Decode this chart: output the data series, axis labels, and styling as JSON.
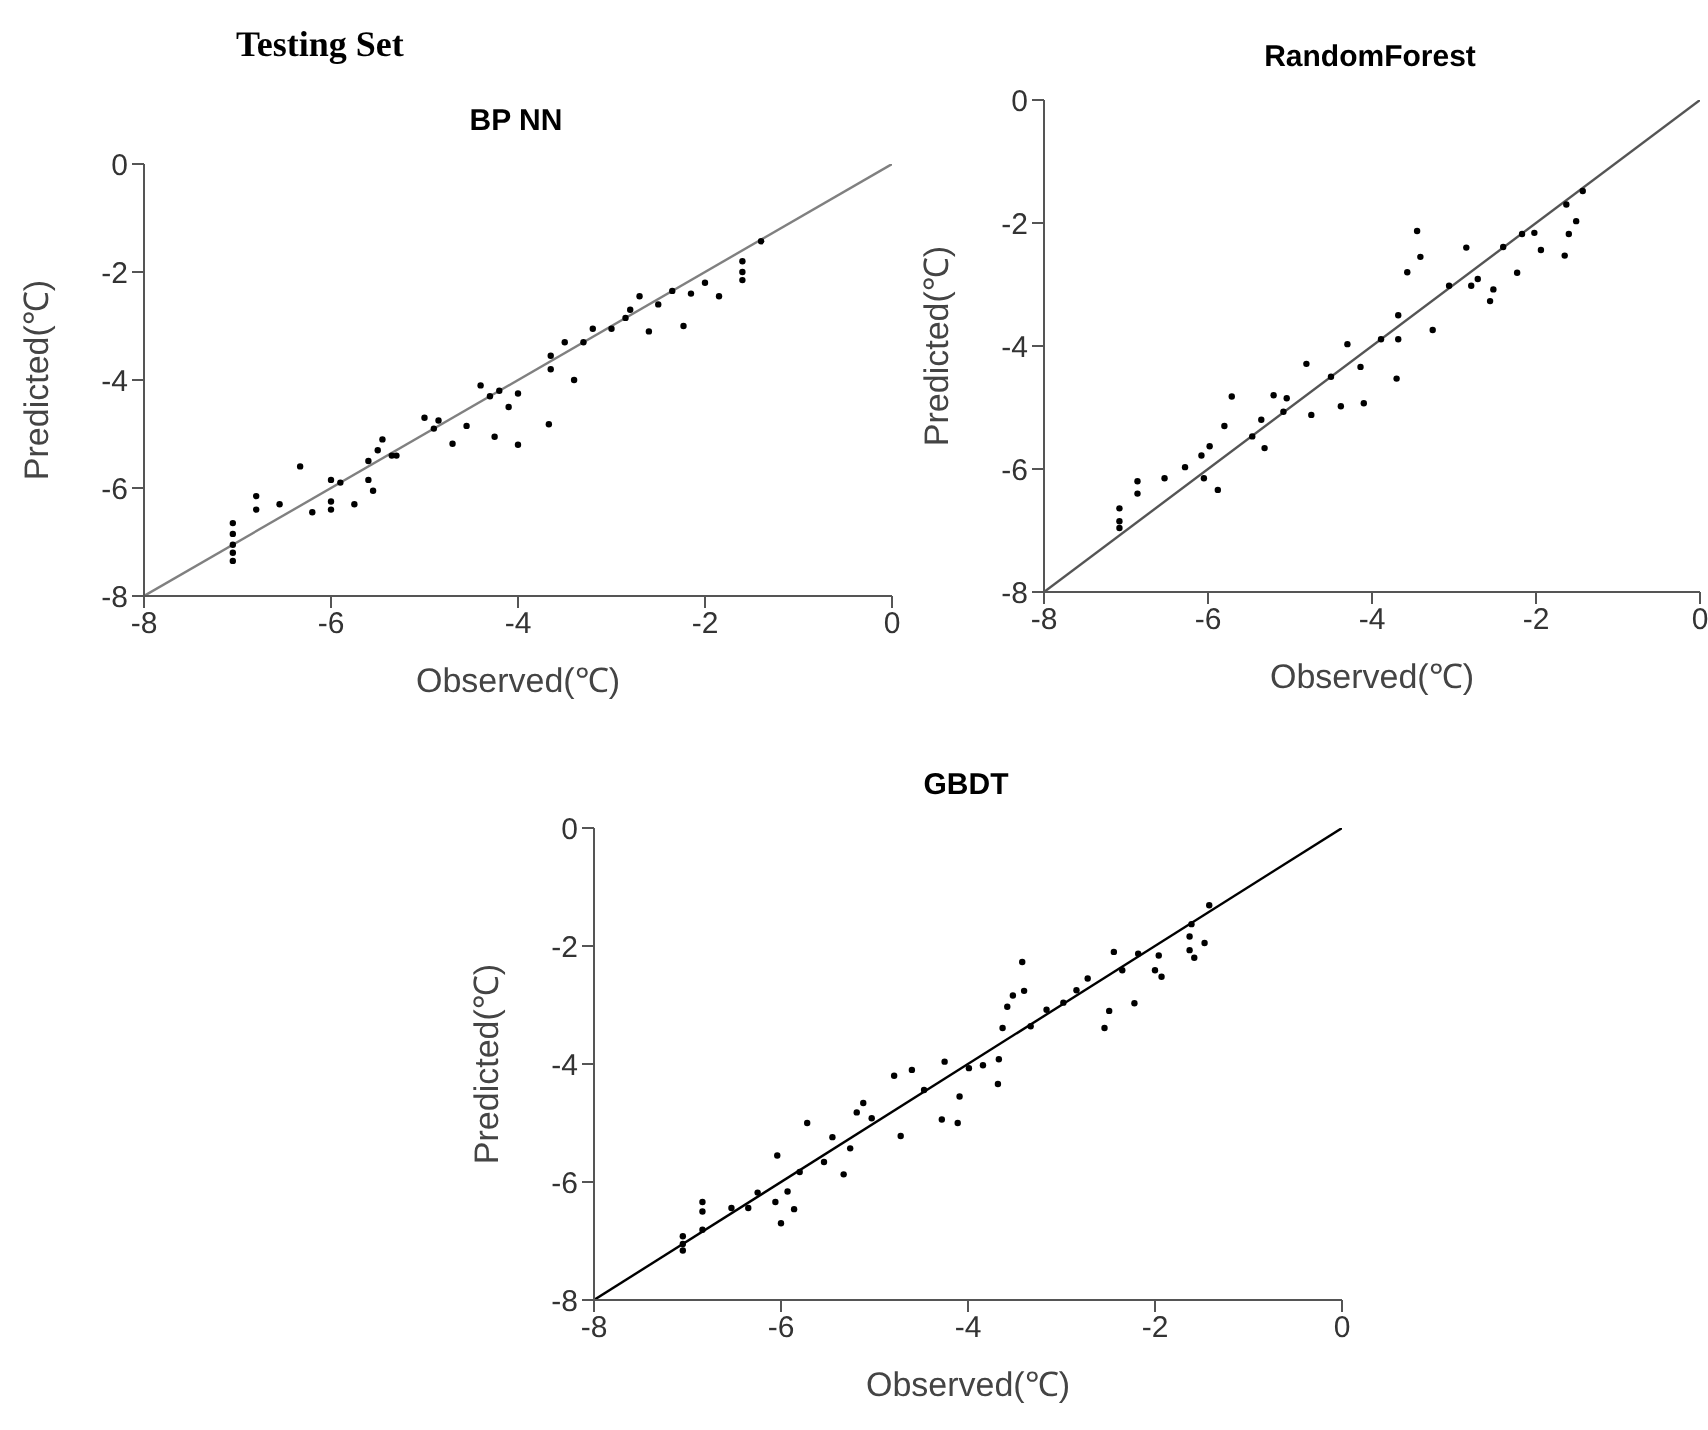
{
  "chart_data": [
    {
      "type": "scatter",
      "title": "BP NN",
      "annotations": [
        "Testing Set"
      ],
      "xlabel": "Observed(℃)",
      "ylabel": "Predicted(℃)",
      "xlim": [
        -8,
        0
      ],
      "ylim": [
        -8,
        0
      ],
      "xticks": [
        -8,
        -6,
        -4,
        -2,
        0
      ],
      "yticks": [
        -8,
        -6,
        -4,
        -2,
        0
      ],
      "series": [
        {
          "marker": "circle",
          "color": "#000000",
          "x": [
            -7.05,
            -7.05,
            -7.05,
            -7.05,
            -7.05,
            -6.8,
            -6.8,
            -6.55,
            -6.33,
            -6.2,
            -6.0,
            -6.0,
            -6.0,
            -5.9,
            -5.75,
            -5.6,
            -5.6,
            -5.55,
            -5.5,
            -5.45,
            -5.35,
            -5.3,
            -5.0,
            -4.9,
            -4.85,
            -4.55,
            -4.7,
            -4.4,
            -4.3,
            -4.2,
            -4.1,
            -4.0,
            -4.25,
            -4.0,
            -3.67,
            -3.65,
            -3.65,
            -3.5,
            -3.4,
            -3.3,
            -3.2,
            -3.0,
            -2.85,
            -2.8,
            -2.7,
            -2.6,
            -2.5,
            -2.35,
            -2.23,
            -2.15,
            -2.0,
            -1.85,
            -1.6,
            -1.6,
            -1.6,
            -1.4
          ],
          "values": [
            -6.65,
            -6.85,
            -7.05,
            -7.2,
            -7.35,
            -6.15,
            -6.4,
            -6.3,
            -5.6,
            -6.45,
            -5.85,
            -6.25,
            -6.4,
            -5.9,
            -6.3,
            -5.5,
            -5.85,
            -6.05,
            -5.3,
            -5.1,
            -5.4,
            -5.4,
            -4.7,
            -4.9,
            -4.75,
            -4.85,
            -5.18,
            -4.1,
            -4.3,
            -4.2,
            -4.5,
            -4.25,
            -5.05,
            -5.2,
            -4.82,
            -3.8,
            -3.55,
            -3.3,
            -4.0,
            -3.3,
            -3.05,
            -3.05,
            -2.85,
            -2.7,
            -2.45,
            -3.1,
            -2.6,
            -2.35,
            -3.0,
            -2.4,
            -2.2,
            -2.45,
            -2.0,
            -2.15,
            -1.8,
            -1.43
          ]
        },
        {
          "type": "line",
          "marker": "none",
          "color": "#808080",
          "x": [
            -8,
            0
          ],
          "values": [
            -8,
            0
          ]
        }
      ]
    },
    {
      "type": "scatter",
      "title": "RandomForest",
      "xlabel": "Observed(℃)",
      "ylabel": "Predicted(℃)",
      "xlim": [
        -8,
        0
      ],
      "ylim": [
        -8,
        0
      ],
      "xticks": [
        -8,
        -6,
        -4,
        -2,
        0
      ],
      "yticks": [
        -8,
        -6,
        -4,
        -2,
        0
      ],
      "series": [
        {
          "marker": "circle",
          "color": "#000000",
          "x": [
            -7.08,
            -7.08,
            -7.08,
            -6.86,
            -6.86,
            -6.53,
            -6.28,
            -6.08,
            -6.05,
            -5.88,
            -5.98,
            -5.8,
            -5.71,
            -5.46,
            -5.35,
            -5.31,
            -5.2,
            -5.04,
            -5.08,
            -4.74,
            -4.8,
            -4.5,
            -4.38,
            -4.3,
            -4.14,
            -4.1,
            -3.89,
            -3.7,
            -3.68,
            -3.68,
            -3.57,
            -3.45,
            -3.41,
            -3.26,
            -3.06,
            -2.79,
            -2.71,
            -2.85,
            -2.56,
            -2.52,
            -2.4,
            -2.23,
            -2.17,
            -2.02,
            -1.94,
            -1.65,
            -1.63,
            -1.6,
            -1.51,
            -1.43
          ],
          "values": [
            -6.64,
            -6.85,
            -6.96,
            -6.2,
            -6.4,
            -6.15,
            -5.97,
            -5.78,
            -6.15,
            -6.34,
            -5.63,
            -5.3,
            -4.82,
            -5.47,
            -5.2,
            -5.66,
            -4.8,
            -4.85,
            -5.07,
            -5.12,
            -4.29,
            -4.5,
            -4.98,
            -3.97,
            -4.34,
            -4.93,
            -3.89,
            -4.53,
            -3.89,
            -3.5,
            -2.8,
            -2.13,
            -2.55,
            -3.74,
            -3.02,
            -3.02,
            -2.91,
            -2.4,
            -3.27,
            -3.08,
            -2.39,
            -2.81,
            -2.18,
            -2.16,
            -2.44,
            -2.53,
            -1.7,
            -2.18,
            -1.97,
            -1.48
          ]
        },
        {
          "type": "line",
          "marker": "none",
          "color": "#555555",
          "x": [
            -8,
            0
          ],
          "values": [
            -8,
            0
          ]
        }
      ]
    },
    {
      "type": "scatter",
      "title": "GBDT",
      "xlabel": "Observed(℃)",
      "ylabel": "Predicted(℃)",
      "xlim": [
        -8,
        0
      ],
      "ylim": [
        -8,
        0
      ],
      "xticks": [
        -8,
        -6,
        -4,
        -2,
        0
      ],
      "yticks": [
        -8,
        -6,
        -4,
        -2,
        0
      ],
      "series": [
        {
          "marker": "circle",
          "color": "#000000",
          "x": [
            -7.05,
            -7.05,
            -7.05,
            -6.84,
            -6.84,
            -6.84,
            -6.53,
            -6.25,
            -6.35,
            -6.06,
            -6.0,
            -6.04,
            -5.93,
            -5.86,
            -5.8,
            -5.72,
            -5.54,
            -5.45,
            -5.33,
            -5.26,
            -5.19,
            -5.12,
            -5.03,
            -4.79,
            -4.72,
            -4.6,
            -4.47,
            -4.28,
            -4.25,
            -4.11,
            -4.09,
            -3.99,
            -3.84,
            -3.68,
            -3.67,
            -3.63,
            -3.58,
            -3.52,
            -3.42,
            -3.4,
            -3.33,
            -3.16,
            -2.98,
            -2.84,
            -2.72,
            -2.54,
            -2.49,
            -2.44,
            -2.35,
            -2.22,
            -2.18,
            -2.0,
            -1.96,
            -1.93,
            -1.63,
            -1.63,
            -1.58,
            -1.47,
            -1.61,
            -1.42
          ],
          "values": [
            -6.92,
            -7.05,
            -7.16,
            -6.34,
            -6.5,
            -6.81,
            -6.44,
            -6.18,
            -6.44,
            -6.34,
            -6.7,
            -5.55,
            -6.16,
            -6.46,
            -5.83,
            -5.0,
            -5.66,
            -5.24,
            -5.87,
            -5.43,
            -4.82,
            -4.66,
            -4.92,
            -4.2,
            -5.22,
            -4.1,
            -4.44,
            -4.94,
            -3.96,
            -5.0,
            -4.55,
            -4.07,
            -4.02,
            -4.34,
            -3.92,
            -3.39,
            -3.03,
            -2.84,
            -2.27,
            -2.76,
            -3.36,
            -3.08,
            -2.96,
            -2.75,
            -2.55,
            -3.39,
            -3.1,
            -2.1,
            -2.41,
            -2.97,
            -2.13,
            -2.41,
            -2.16,
            -2.52,
            -1.84,
            -2.07,
            -2.2,
            -1.95,
            -1.63,
            -1.31
          ]
        },
        {
          "type": "line",
          "marker": "none",
          "color": "#000000",
          "x": [
            -8,
            0
          ],
          "values": [
            -8,
            0
          ]
        }
      ]
    }
  ]
}
